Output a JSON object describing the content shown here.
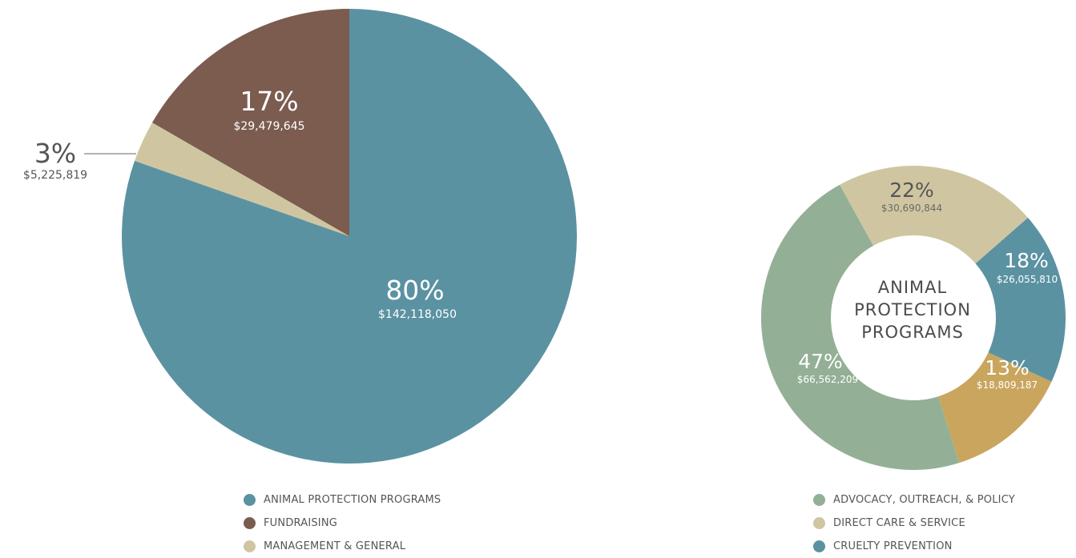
{
  "chart_data": [
    {
      "type": "pie",
      "slices": [
        {
          "name": "ANIMAL PROTECTION PROGRAMS",
          "percent": "80%",
          "amount": "$142,118,050",
          "value": 142118050,
          "color": "#5b92a2"
        },
        {
          "name": "MANAGEMENT & GENERAL",
          "percent": "3%",
          "amount": "$5,225,819",
          "value": 5225819,
          "color": "#cfc6a1"
        },
        {
          "name": "FUNDRAISING",
          "percent": "17%",
          "amount": "$29,479,645",
          "value": 29479645,
          "color": "#7b5c4f"
        }
      ],
      "legend": [
        {
          "label": "ANIMAL PROTECTION PROGRAMS",
          "color": "#5b92a2"
        },
        {
          "label": "FUNDRAISING",
          "color": "#7b5c4f"
        },
        {
          "label": "MANAGEMENT & GENERAL",
          "color": "#cfc6a1"
        }
      ]
    },
    {
      "type": "pie",
      "center_label": [
        "ANIMAL",
        "PROTECTION",
        "PROGRAMS"
      ],
      "slices": [
        {
          "name": "CRUELTY PREVENTION",
          "percent": "18%",
          "amount": "$26,055,810",
          "value": 26055810,
          "color": "#5b92a2"
        },
        {
          "name": "",
          "percent": "13%",
          "amount": "$18,809,187",
          "value": 18809187,
          "color": "#c9a55e"
        },
        {
          "name": "ADVOCACY, OUTREACH, & POLICY",
          "percent": "47%",
          "amount": "$66,562,209",
          "value": 66562209,
          "color": "#93b096"
        },
        {
          "name": "DIRECT CARE & SERVICE",
          "percent": "22%",
          "amount": "$30,690,844",
          "value": 30690844,
          "color": "#cfc6a1"
        }
      ],
      "legend": [
        {
          "label": "ADVOCACY, OUTREACH, & POLICY",
          "color": "#93b096"
        },
        {
          "label": "DIRECT CARE & SERVICE",
          "color": "#cfc6a1"
        },
        {
          "label": "CRUELTY PREVENTION",
          "color": "#5b92a2"
        }
      ]
    }
  ]
}
